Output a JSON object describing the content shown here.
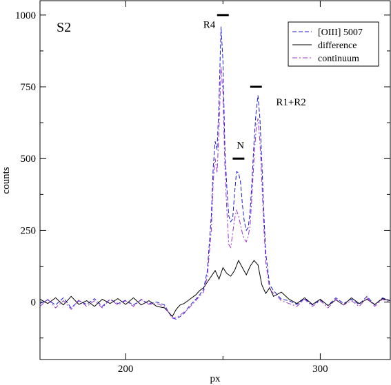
{
  "chart_data": {
    "type": "line",
    "title": "",
    "xlabel": "px",
    "ylabel": "counts",
    "xlim": [
      156,
      336
    ],
    "ylim": [
      -200,
      1050
    ],
    "x_ticks": [
      200,
      300
    ],
    "y_ticks": [
      0,
      250,
      500,
      750,
      1000
    ],
    "grid": false,
    "legend_position": "top-right",
    "panel_label": "S2",
    "series": [
      {
        "name": "[OIII] 5007",
        "color": "#1a1adb",
        "style": "dashed",
        "x": [
          156,
          160,
          164,
          168,
          172,
          176,
          180,
          184,
          188,
          192,
          196,
          200,
          204,
          208,
          212,
          216,
          220,
          222,
          224,
          226,
          228,
          230,
          232,
          234,
          236,
          238,
          240,
          242,
          244,
          245,
          246,
          247,
          248,
          249,
          250,
          251,
          252,
          253,
          254,
          255,
          256,
          257,
          258,
          259,
          260,
          261,
          262,
          263,
          264,
          265,
          266,
          267,
          268,
          269,
          270,
          271,
          272,
          274,
          276,
          278,
          280,
          284,
          288,
          292,
          296,
          300,
          304,
          308,
          312,
          316,
          320,
          324,
          328,
          332,
          336
        ],
        "y": [
          -5,
          8,
          -10,
          15,
          -20,
          5,
          -8,
          12,
          -15,
          10,
          -5,
          6,
          -10,
          8,
          -5,
          0,
          -10,
          -35,
          -55,
          -60,
          -50,
          -40,
          -20,
          -5,
          10,
          25,
          45,
          110,
          300,
          470,
          560,
          530,
          700,
          960,
          840,
          540,
          400,
          300,
          280,
          290,
          380,
          455,
          450,
          420,
          340,
          280,
          250,
          260,
          320,
          430,
          560,
          660,
          720,
          640,
          490,
          310,
          170,
          60,
          40,
          25,
          10,
          5,
          -8,
          12,
          -10,
          8,
          -12,
          15,
          -5,
          10,
          -8,
          20,
          -10,
          15,
          5
        ]
      },
      {
        "name": "difference",
        "color": "#000000",
        "style": "solid",
        "x": [
          156,
          160,
          164,
          168,
          172,
          176,
          180,
          184,
          188,
          192,
          196,
          200,
          204,
          208,
          212,
          216,
          220,
          222,
          224,
          226,
          228,
          230,
          232,
          234,
          236,
          238,
          240,
          242,
          244,
          246,
          248,
          250,
          252,
          254,
          256,
          258,
          260,
          262,
          264,
          266,
          268,
          270,
          272,
          274,
          276,
          280,
          284,
          288,
          292,
          296,
          300,
          304,
          308,
          312,
          316,
          320,
          324,
          328,
          332,
          336
        ],
        "y": [
          10,
          -5,
          15,
          -10,
          20,
          -8,
          5,
          -15,
          10,
          -5,
          12,
          -8,
          15,
          -10,
          5,
          -15,
          -20,
          -35,
          -50,
          -25,
          -10,
          -5,
          5,
          15,
          25,
          40,
          50,
          70,
          90,
          110,
          80,
          120,
          100,
          90,
          110,
          145,
          120,
          95,
          125,
          145,
          130,
          60,
          30,
          50,
          20,
          35,
          10,
          -5,
          15,
          -8,
          10,
          -12,
          8,
          -10,
          15,
          -5,
          10,
          -8,
          12,
          5
        ]
      },
      {
        "name": "continuum",
        "color": "#a030d0",
        "style": "dashdot",
        "x": [
          156,
          160,
          164,
          168,
          172,
          176,
          180,
          184,
          188,
          192,
          196,
          200,
          204,
          208,
          212,
          216,
          220,
          222,
          224,
          226,
          228,
          230,
          232,
          234,
          236,
          238,
          240,
          242,
          244,
          245,
          246,
          247,
          248,
          249,
          250,
          251,
          252,
          253,
          254,
          255,
          256,
          257,
          258,
          259,
          260,
          261,
          262,
          263,
          264,
          265,
          266,
          267,
          268,
          269,
          270,
          271,
          272,
          274,
          276,
          278,
          280,
          284,
          288,
          292,
          296,
          300,
          304,
          308,
          312,
          316,
          320,
          324,
          328,
          332,
          336
        ],
        "y": [
          -15,
          10,
          -20,
          5,
          -25,
          8,
          -15,
          5,
          -20,
          10,
          -10,
          5,
          -15,
          10,
          -8,
          -5,
          -15,
          -35,
          -55,
          -55,
          -45,
          -35,
          -25,
          -10,
          5,
          20,
          35,
          90,
          250,
          420,
          500,
          450,
          600,
          820,
          730,
          470,
          320,
          200,
          190,
          240,
          290,
          320,
          300,
          270,
          240,
          220,
          210,
          230,
          270,
          380,
          500,
          600,
          640,
          560,
          420,
          260,
          140,
          45,
          30,
          20,
          5,
          -5,
          -15,
          10,
          -15,
          5,
          -20,
          10,
          -10,
          5,
          -15,
          15,
          -15,
          10,
          0
        ]
      }
    ],
    "annotations": [
      {
        "text": "R4",
        "x": 243,
        "y": 955
      },
      {
        "text": "N",
        "x": 259,
        "y": 535
      },
      {
        "text": "R1+R2",
        "x": 285,
        "y": 685
      }
    ],
    "markers": [
      {
        "x1": 247,
        "x2": 253,
        "y": 1000
      },
      {
        "x1": 255,
        "x2": 261,
        "y": 500
      },
      {
        "x1": 264,
        "x2": 270,
        "y": 750
      }
    ]
  }
}
